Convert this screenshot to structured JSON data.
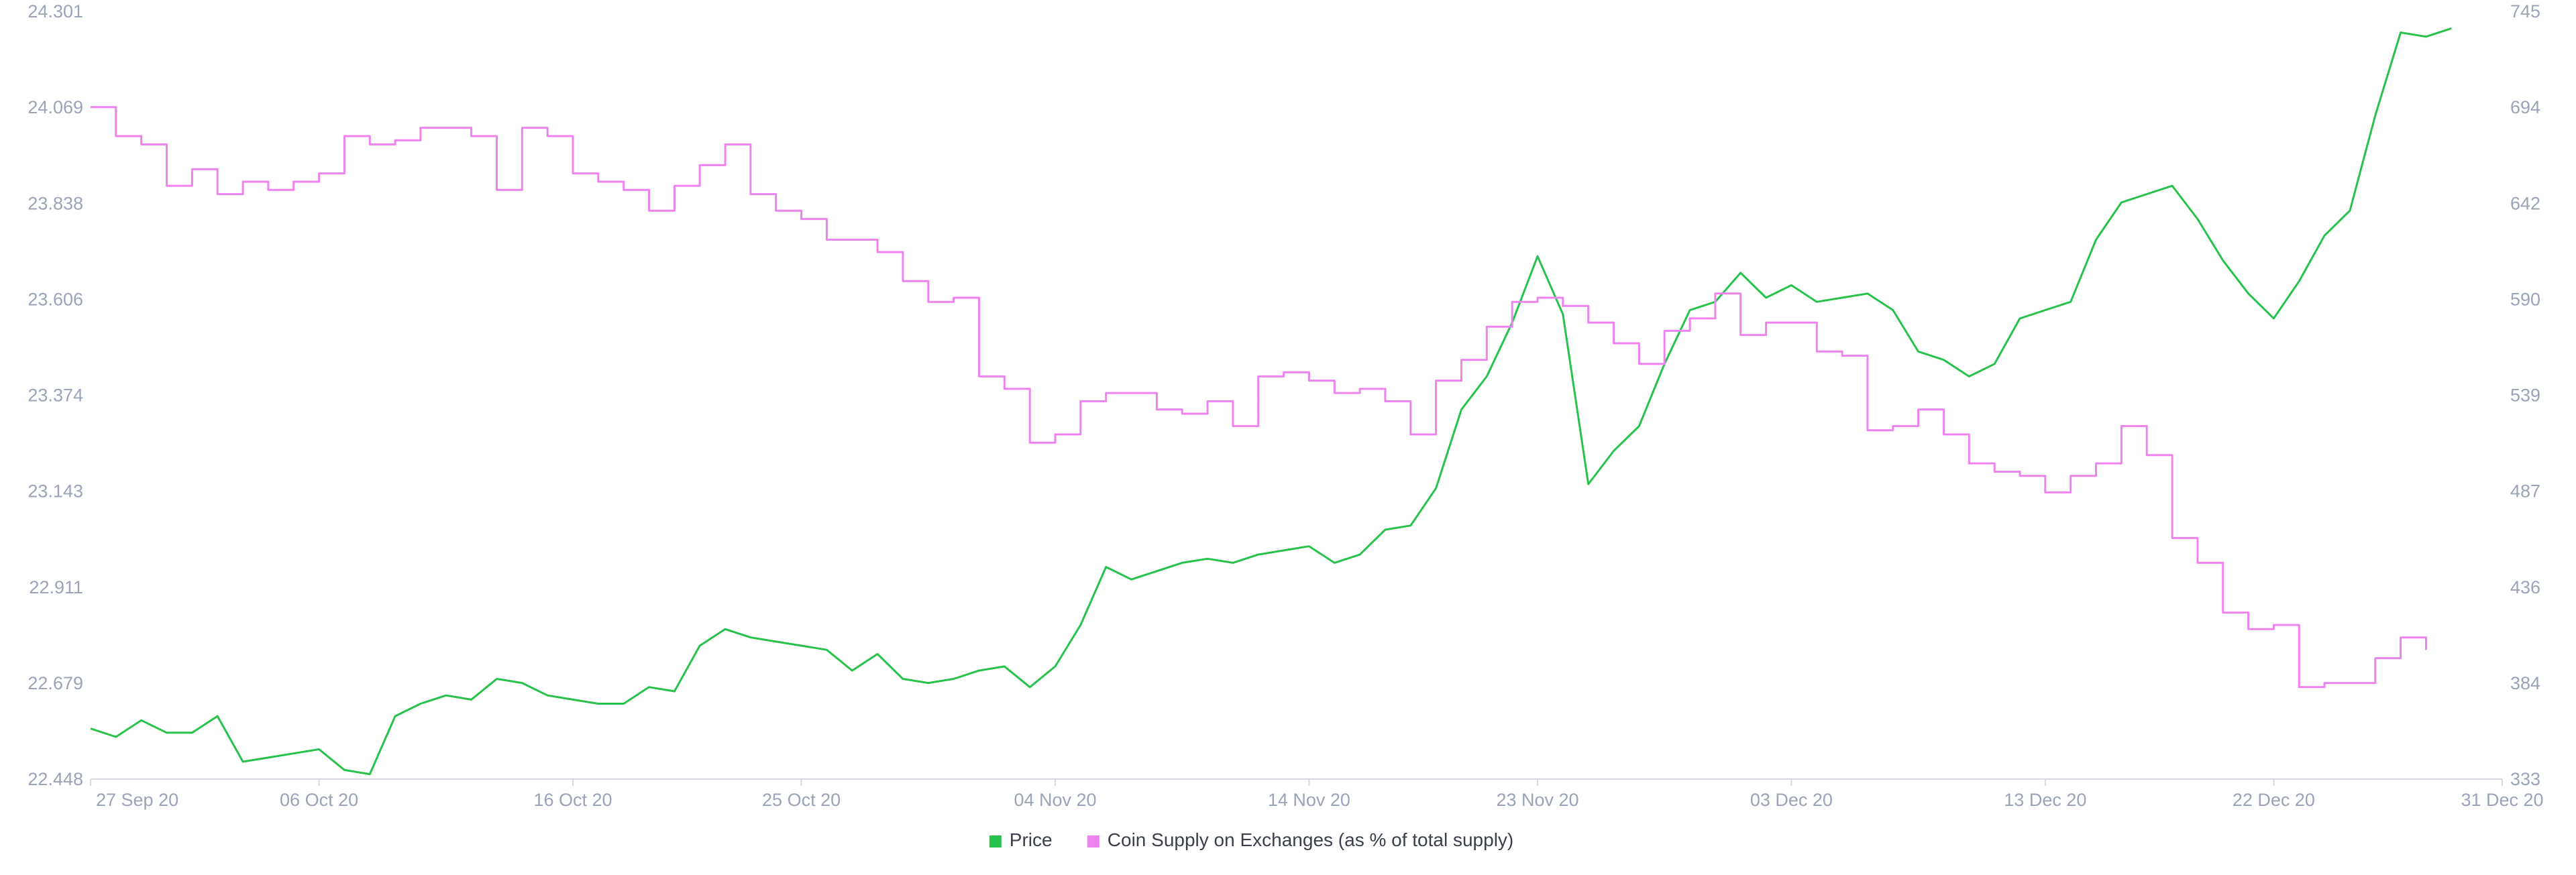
{
  "chart_data": {
    "type": "line",
    "title": "",
    "xlabel": "",
    "ylabel_left": "",
    "ylabel_right": "",
    "grid": false,
    "legend_position": "bottom-center",
    "x_range": [
      "2020-09-27",
      "2020-12-31"
    ],
    "x_ticks": [
      "27 Sep 20",
      "06 Oct 20",
      "16 Oct 20",
      "25 Oct 20",
      "04 Nov 20",
      "14 Nov 20",
      "23 Nov 20",
      "03 Dec 20",
      "13 Dec 20",
      "22 Dec 20",
      "31 Dec 20"
    ],
    "x_tick_dates": [
      "2020-09-27",
      "2020-10-06",
      "2020-10-16",
      "2020-10-25",
      "2020-11-04",
      "2020-11-14",
      "2020-11-23",
      "2020-12-03",
      "2020-12-13",
      "2020-12-22",
      "2020-12-31"
    ],
    "y_left": {
      "series": "Price",
      "range": [
        22.448,
        24.301
      ],
      "ticks": [
        "22.448",
        "22.679",
        "22.911",
        "23.143",
        "23.374",
        "23.606",
        "23.838",
        "24.069",
        "24.301"
      ]
    },
    "y_right": {
      "series": "Coin Supply on Exchanges (as % of total supply)",
      "range": [
        333,
        745
      ],
      "ticks": [
        "333",
        "384",
        "436",
        "487",
        "539",
        "590",
        "642",
        "694",
        "745"
      ]
    },
    "series": [
      {
        "name": "Price",
        "axis": "left",
        "color": "#27c24c",
        "step": false,
        "points": [
          [
            "2020-09-27",
            22.57
          ],
          [
            "2020-09-28",
            22.55
          ],
          [
            "2020-09-29",
            22.59
          ],
          [
            "2020-09-30",
            22.56
          ],
          [
            "2020-10-01",
            22.56
          ],
          [
            "2020-10-02",
            22.6
          ],
          [
            "2020-10-03",
            22.49
          ],
          [
            "2020-10-04",
            22.5
          ],
          [
            "2020-10-05",
            22.51
          ],
          [
            "2020-10-06",
            22.52
          ],
          [
            "2020-10-07",
            22.47
          ],
          [
            "2020-10-08",
            22.46
          ],
          [
            "2020-10-09",
            22.6
          ],
          [
            "2020-10-10",
            22.63
          ],
          [
            "2020-10-11",
            22.65
          ],
          [
            "2020-10-12",
            22.64
          ],
          [
            "2020-10-13",
            22.69
          ],
          [
            "2020-10-14",
            22.68
          ],
          [
            "2020-10-15",
            22.65
          ],
          [
            "2020-10-16",
            22.64
          ],
          [
            "2020-10-17",
            22.63
          ],
          [
            "2020-10-18",
            22.63
          ],
          [
            "2020-10-19",
            22.67
          ],
          [
            "2020-10-20",
            22.66
          ],
          [
            "2020-10-21",
            22.77
          ],
          [
            "2020-10-22",
            22.81
          ],
          [
            "2020-10-23",
            22.79
          ],
          [
            "2020-10-24",
            22.78
          ],
          [
            "2020-10-25",
            22.77
          ],
          [
            "2020-10-26",
            22.76
          ],
          [
            "2020-10-27",
            22.71
          ],
          [
            "2020-10-28",
            22.75
          ],
          [
            "2020-10-29",
            22.69
          ],
          [
            "2020-10-30",
            22.68
          ],
          [
            "2020-10-31",
            22.69
          ],
          [
            "2020-11-01",
            22.71
          ],
          [
            "2020-11-02",
            22.72
          ],
          [
            "2020-11-03",
            22.67
          ],
          [
            "2020-11-04",
            22.72
          ],
          [
            "2020-11-05",
            22.82
          ],
          [
            "2020-11-06",
            22.96
          ],
          [
            "2020-11-07",
            22.93
          ],
          [
            "2020-11-08",
            22.95
          ],
          [
            "2020-11-09",
            22.97
          ],
          [
            "2020-11-10",
            22.98
          ],
          [
            "2020-11-11",
            22.97
          ],
          [
            "2020-11-12",
            22.99
          ],
          [
            "2020-11-13",
            23.0
          ],
          [
            "2020-11-14",
            23.01
          ],
          [
            "2020-11-15",
            22.97
          ],
          [
            "2020-11-16",
            22.99
          ],
          [
            "2020-11-17",
            23.05
          ],
          [
            "2020-11-18",
            23.06
          ],
          [
            "2020-11-19",
            23.15
          ],
          [
            "2020-11-20",
            23.34
          ],
          [
            "2020-11-21",
            23.42
          ],
          [
            "2020-11-22",
            23.55
          ],
          [
            "2020-11-23",
            23.71
          ],
          [
            "2020-11-24",
            23.57
          ],
          [
            "2020-11-25",
            23.16
          ],
          [
            "2020-11-26",
            23.24
          ],
          [
            "2020-11-27",
            23.3
          ],
          [
            "2020-11-28",
            23.45
          ],
          [
            "2020-11-29",
            23.58
          ],
          [
            "2020-11-30",
            23.6
          ],
          [
            "2020-12-01",
            23.67
          ],
          [
            "2020-12-02",
            23.61
          ],
          [
            "2020-12-03",
            23.64
          ],
          [
            "2020-12-04",
            23.6
          ],
          [
            "2020-12-05",
            23.61
          ],
          [
            "2020-12-06",
            23.62
          ],
          [
            "2020-12-07",
            23.58
          ],
          [
            "2020-12-08",
            23.48
          ],
          [
            "2020-12-09",
            23.46
          ],
          [
            "2020-12-10",
            23.42
          ],
          [
            "2020-12-11",
            23.45
          ],
          [
            "2020-12-12",
            23.56
          ],
          [
            "2020-12-13",
            23.58
          ],
          [
            "2020-12-14",
            23.6
          ],
          [
            "2020-12-15",
            23.75
          ],
          [
            "2020-12-16",
            23.84
          ],
          [
            "2020-12-17",
            23.86
          ],
          [
            "2020-12-18",
            23.88
          ],
          [
            "2020-12-19",
            23.8
          ],
          [
            "2020-12-20",
            23.7
          ],
          [
            "2020-12-21",
            23.62
          ],
          [
            "2020-12-22",
            23.56
          ],
          [
            "2020-12-23",
            23.65
          ],
          [
            "2020-12-24",
            23.76
          ],
          [
            "2020-12-25",
            23.82
          ],
          [
            "2020-12-26",
            24.05
          ],
          [
            "2020-12-27",
            24.25
          ],
          [
            "2020-12-28",
            24.24
          ],
          [
            "2020-12-29",
            24.26
          ]
        ]
      },
      {
        "name": "Coin Supply on Exchanges (as % of total supply)",
        "axis": "right",
        "color": "#ee82ee",
        "step": true,
        "points": [
          [
            "2020-09-27",
            24.07
          ],
          [
            "2020-09-28",
            24.0
          ],
          [
            "2020-09-29",
            23.98
          ],
          [
            "2020-09-30",
            23.88
          ],
          [
            "2020-10-01",
            23.92
          ],
          [
            "2020-10-02",
            23.86
          ],
          [
            "2020-10-03",
            23.89
          ],
          [
            "2020-10-04",
            23.87
          ],
          [
            "2020-10-05",
            23.89
          ],
          [
            "2020-10-06",
            23.91
          ],
          [
            "2020-10-07",
            24.0
          ],
          [
            "2020-10-08",
            23.98
          ],
          [
            "2020-10-09",
            23.99
          ],
          [
            "2020-10-10",
            24.02
          ],
          [
            "2020-10-11",
            24.02
          ],
          [
            "2020-10-12",
            24.0
          ],
          [
            "2020-10-13",
            23.87
          ],
          [
            "2020-10-14",
            24.02
          ],
          [
            "2020-10-15",
            24.0
          ],
          [
            "2020-10-16",
            23.91
          ],
          [
            "2020-10-17",
            23.89
          ],
          [
            "2020-10-18",
            23.87
          ],
          [
            "2020-10-19",
            23.82
          ],
          [
            "2020-10-20",
            23.88
          ],
          [
            "2020-10-21",
            23.93
          ],
          [
            "2020-10-22",
            23.98
          ],
          [
            "2020-10-23",
            23.86
          ],
          [
            "2020-10-24",
            23.82
          ],
          [
            "2020-10-25",
            23.8
          ],
          [
            "2020-10-26",
            23.75
          ],
          [
            "2020-10-27",
            23.75
          ],
          [
            "2020-10-28",
            23.72
          ],
          [
            "2020-10-29",
            23.65
          ],
          [
            "2020-10-30",
            23.6
          ],
          [
            "2020-10-31",
            23.61
          ],
          [
            "2020-11-01",
            23.42
          ],
          [
            "2020-11-02",
            23.39
          ],
          [
            "2020-11-03",
            23.26
          ],
          [
            "2020-11-04",
            23.28
          ],
          [
            "2020-11-05",
            23.36
          ],
          [
            "2020-11-06",
            23.38
          ],
          [
            "2020-11-07",
            23.38
          ],
          [
            "2020-11-08",
            23.34
          ],
          [
            "2020-11-09",
            23.33
          ],
          [
            "2020-11-10",
            23.36
          ],
          [
            "2020-11-11",
            23.3
          ],
          [
            "2020-11-12",
            23.42
          ],
          [
            "2020-11-13",
            23.43
          ],
          [
            "2020-11-14",
            23.41
          ],
          [
            "2020-11-15",
            23.38
          ],
          [
            "2020-11-16",
            23.39
          ],
          [
            "2020-11-17",
            23.36
          ],
          [
            "2020-11-18",
            23.28
          ],
          [
            "2020-11-19",
            23.41
          ],
          [
            "2020-11-20",
            23.46
          ],
          [
            "2020-11-21",
            23.54
          ],
          [
            "2020-11-22",
            23.6
          ],
          [
            "2020-11-23",
            23.61
          ],
          [
            "2020-11-24",
            23.59
          ],
          [
            "2020-11-25",
            23.55
          ],
          [
            "2020-11-26",
            23.5
          ],
          [
            "2020-11-27",
            23.45
          ],
          [
            "2020-11-28",
            23.53
          ],
          [
            "2020-11-29",
            23.56
          ],
          [
            "2020-11-30",
            23.62
          ],
          [
            "2020-12-01",
            23.52
          ],
          [
            "2020-12-02",
            23.55
          ],
          [
            "2020-12-03",
            23.55
          ],
          [
            "2020-12-04",
            23.48
          ],
          [
            "2020-12-05",
            23.47
          ],
          [
            "2020-12-06",
            23.29
          ],
          [
            "2020-12-07",
            23.3
          ],
          [
            "2020-12-08",
            23.34
          ],
          [
            "2020-12-09",
            23.28
          ],
          [
            "2020-12-10",
            23.21
          ],
          [
            "2020-12-11",
            23.19
          ],
          [
            "2020-12-12",
            23.18
          ],
          [
            "2020-12-13",
            23.14
          ],
          [
            "2020-12-14",
            23.18
          ],
          [
            "2020-12-15",
            23.21
          ],
          [
            "2020-12-16",
            23.3
          ],
          [
            "2020-12-17",
            23.23
          ],
          [
            "2020-12-18",
            23.03
          ],
          [
            "2020-12-19",
            22.97
          ],
          [
            "2020-12-20",
            22.85
          ],
          [
            "2020-12-21",
            22.81
          ],
          [
            "2020-12-22",
            22.82
          ],
          [
            "2020-12-23",
            22.67
          ],
          [
            "2020-12-24",
            22.68
          ],
          [
            "2020-12-25",
            22.68
          ],
          [
            "2020-12-26",
            22.74
          ],
          [
            "2020-12-27",
            22.79
          ],
          [
            "2020-12-28",
            22.76
          ]
        ]
      }
    ]
  }
}
